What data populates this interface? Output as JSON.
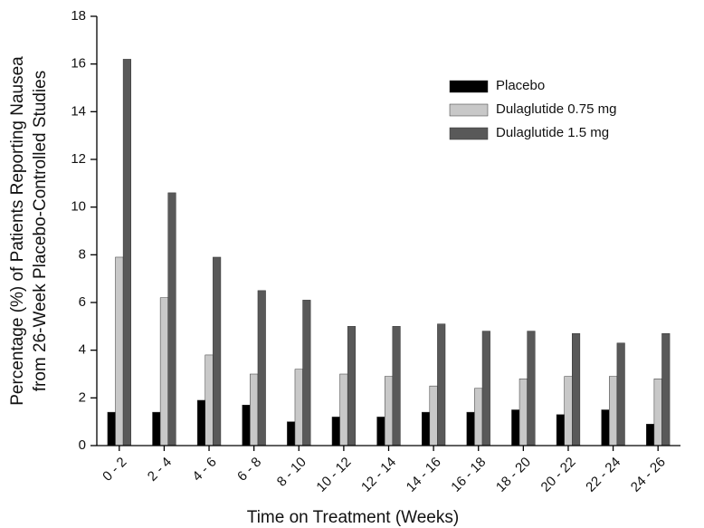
{
  "chart_data": {
    "type": "bar",
    "x_label": "Time on Treatment (Weeks)",
    "y_label": [
      "Percentage (%) of Patients Reporting Nausea",
      "from 26-Week Placebo-Controlled Studies"
    ],
    "categories": [
      "0 - 2",
      "2 - 4",
      "4 - 6",
      "6 - 8",
      "8 - 10",
      "10 - 12",
      "12 - 14",
      "14 - 16",
      "16 - 18",
      "18 - 20",
      "20 - 22",
      "22 - 24",
      "24 - 26"
    ],
    "series": [
      {
        "name": "Placebo",
        "color": "#000000",
        "values": [
          1.4,
          1.4,
          1.9,
          1.7,
          1.0,
          1.2,
          1.2,
          1.4,
          1.4,
          1.5,
          1.3,
          1.5,
          0.9
        ]
      },
      {
        "name": "Dulaglutide 0.75 mg",
        "color": "#c8c8c8",
        "values": [
          7.9,
          6.2,
          3.8,
          3.0,
          3.2,
          3.0,
          2.9,
          2.5,
          2.4,
          2.8,
          2.9,
          2.9,
          2.8
        ]
      },
      {
        "name": "Dulaglutide 1.5 mg",
        "color": "#595959",
        "values": [
          16.2,
          10.6,
          7.9,
          6.5,
          6.1,
          5.0,
          5.0,
          5.1,
          4.8,
          4.8,
          4.7,
          4.3,
          4.7
        ]
      }
    ],
    "ylim": [
      0,
      18
    ],
    "yticks": [
      0,
      2,
      4,
      6,
      8,
      10,
      12,
      14,
      16,
      18
    ],
    "legend": "upper right"
  }
}
